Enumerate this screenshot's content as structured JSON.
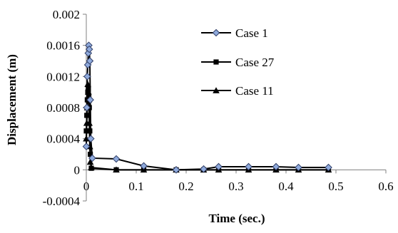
{
  "chart_data": {
    "type": "scatter",
    "title": "",
    "xlabel": "Time (sec.)",
    "ylabel": "Displacement (m)",
    "xlim": [
      0,
      0.6
    ],
    "ylim": [
      -0.0004,
      0.002
    ],
    "x_ticks": [
      0,
      0.1,
      0.2,
      0.3,
      0.4,
      0.5,
      0.6
    ],
    "x_tick_labels": [
      "0",
      "0.1",
      "0.2",
      "0.3",
      "0.4",
      "0.5",
      "0.6"
    ],
    "y_ticks": [
      -0.0004,
      0,
      0.0004,
      0.0008,
      0.0012,
      0.0016,
      0.002
    ],
    "y_tick_labels": [
      "-0.0004",
      "0",
      "0.0004",
      "0.0008",
      "0.0012",
      "0.0016",
      "0.002"
    ],
    "grid": false,
    "legend_position": "top-right",
    "series": [
      {
        "name": "Case 1",
        "marker": "diamond",
        "color": "#8FAADC",
        "x": [
          0,
          0.001,
          0.002,
          0.003,
          0.004,
          0.005,
          0.006,
          0.007,
          0.008,
          0.009,
          0.012,
          0.06,
          0.115,
          0.18,
          0.235,
          0.265,
          0.325,
          0.38,
          0.425,
          0.485
        ],
        "y": [
          0.0003,
          0.0008,
          0.0012,
          0.00135,
          0.0015,
          0.0016,
          0.00155,
          0.0014,
          0.0009,
          0.0004,
          0.00015,
          0.00014,
          5e-05,
          0.0,
          1e-05,
          4e-05,
          4e-05,
          4e-05,
          3e-05,
          3e-05
        ]
      },
      {
        "name": "Case 27",
        "marker": "square",
        "color": "#000000",
        "x": [
          0,
          0.001,
          0.002,
          0.003,
          0.004,
          0.005,
          0.006,
          0.007,
          0.008,
          0.01,
          0.06,
          0.115,
          0.18,
          0.235,
          0.265,
          0.325,
          0.38,
          0.425,
          0.485
        ],
        "y": [
          0.0005,
          0.0007,
          0.0009,
          0.001,
          0.00105,
          0.00095,
          0.0008,
          0.0005,
          0.0002,
          2e-05,
          0.0,
          0.0,
          0.0,
          0.0,
          0.0,
          0.0,
          0.0,
          0.0,
          0.0
        ]
      },
      {
        "name": "Case 11",
        "marker": "triangle",
        "color": "#000000",
        "x": [
          0,
          0.001,
          0.002,
          0.003,
          0.004,
          0.005,
          0.006,
          0.007,
          0.008,
          0.01,
          0.06,
          0.115,
          0.18,
          0.235,
          0.265,
          0.325,
          0.38,
          0.425,
          0.485
        ],
        "y": [
          0.0004,
          0.0006,
          0.0008,
          0.0011,
          0.001,
          0.0009,
          0.0006,
          0.0003,
          0.0001,
          3e-05,
          0.0,
          0.0,
          0.0,
          0.0,
          0.0,
          0.0,
          0.0,
          0.0,
          0.0
        ]
      }
    ]
  },
  "colors": {
    "diamond_fill": "#8FAADC",
    "line": "#000000",
    "axis": "#808080"
  }
}
